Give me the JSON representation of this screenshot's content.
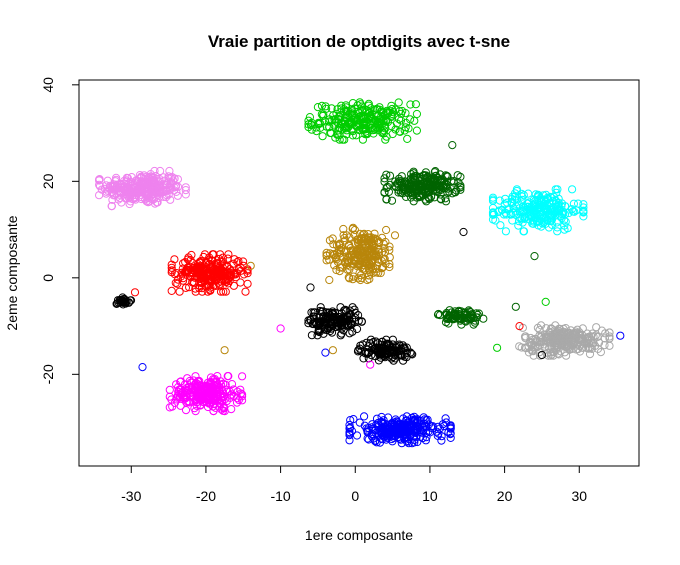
{
  "chart_data": {
    "type": "scatter",
    "title": "Vraie partition de optdigits avec t-sne",
    "xlabel": "1ere composante",
    "ylabel": "2eme composante",
    "xlim": [
      -37,
      38
    ],
    "ylim": [
      -39,
      41
    ],
    "xticks": [
      -30,
      -20,
      -10,
      0,
      10,
      20,
      30
    ],
    "yticks": [
      -20,
      0,
      20,
      40
    ],
    "grid": false,
    "legend": "none",
    "marker": "open-circle",
    "clusters": [
      {
        "color": "#ee82ee",
        "center": [
          -28.5,
          18.5
        ],
        "spread": [
          4.8,
          3.0
        ],
        "count": 280
      },
      {
        "color": "#00cd00",
        "center": [
          1.0,
          32.5
        ],
        "spread": [
          6.0,
          3.2
        ],
        "count": 260
      },
      {
        "color": "#006400",
        "center": [
          9.0,
          19.0
        ],
        "spread": [
          4.2,
          2.6
        ],
        "count": 220
      },
      {
        "color": "#00ffff",
        "center": [
          24.5,
          14.0
        ],
        "spread": [
          5.0,
          3.6
        ],
        "count": 240
      },
      {
        "color": "#b8860b",
        "center": [
          1.0,
          5.0
        ],
        "spread": [
          4.0,
          4.5
        ],
        "count": 240
      },
      {
        "color": "#ff0000",
        "center": [
          -19.5,
          1.0
        ],
        "spread": [
          4.2,
          3.2
        ],
        "count": 260
      },
      {
        "color": "#000000",
        "center": [
          -31.0,
          -4.8
        ],
        "spread": [
          0.8,
          0.6
        ],
        "count": 30
      },
      {
        "color": "#000000",
        "center": [
          -3.0,
          -9.0
        ],
        "spread": [
          3.2,
          2.4
        ],
        "count": 150
      },
      {
        "color": "#000000",
        "center": [
          4.0,
          -15.0
        ],
        "spread": [
          3.0,
          1.8
        ],
        "count": 120
      },
      {
        "color": "#006400",
        "center": [
          14.0,
          -8.0
        ],
        "spread": [
          2.6,
          1.4
        ],
        "count": 80
      },
      {
        "color": "#a9a9a9",
        "center": [
          28.0,
          -13.0
        ],
        "spread": [
          5.0,
          2.6
        ],
        "count": 260
      },
      {
        "color": "#ff00ff",
        "center": [
          -20.0,
          -24.0
        ],
        "spread": [
          4.0,
          3.0
        ],
        "count": 260
      },
      {
        "color": "#0000ff",
        "center": [
          6.0,
          -31.5
        ],
        "spread": [
          5.6,
          2.3
        ],
        "count": 280
      }
    ],
    "outliers": [
      {
        "color": "#0000ff",
        "x": -28.5,
        "y": -18.5
      },
      {
        "color": "#b8860b",
        "x": -17.5,
        "y": -15.0
      },
      {
        "color": "#ff0000",
        "x": -29.5,
        "y": -3.0
      },
      {
        "color": "#006400",
        "x": 13.0,
        "y": 27.5
      },
      {
        "color": "#b8860b",
        "x": -14.0,
        "y": 2.5
      },
      {
        "color": "#ff0000",
        "x": 22.0,
        "y": -10.0
      },
      {
        "color": "#000000",
        "x": 14.5,
        "y": 9.5
      },
      {
        "color": "#00cd00",
        "x": 25.5,
        "y": -5.0
      },
      {
        "color": "#000000",
        "x": 25.0,
        "y": -16.0
      },
      {
        "color": "#0000ff",
        "x": 35.5,
        "y": -12.0
      },
      {
        "color": "#00cd00",
        "x": 19.0,
        "y": -14.5
      },
      {
        "color": "#ff00ff",
        "x": 2.0,
        "y": -18.0
      },
      {
        "color": "#b8860b",
        "x": -3.0,
        "y": -15.0
      },
      {
        "color": "#0000ff",
        "x": -4.0,
        "y": -15.5
      },
      {
        "color": "#000000",
        "x": -6.0,
        "y": -2.0
      },
      {
        "color": "#ff00ff",
        "x": -10.0,
        "y": -10.5
      },
      {
        "color": "#006400",
        "x": 24.0,
        "y": 4.5
      },
      {
        "color": "#006400",
        "x": 21.5,
        "y": -6.0
      }
    ]
  }
}
